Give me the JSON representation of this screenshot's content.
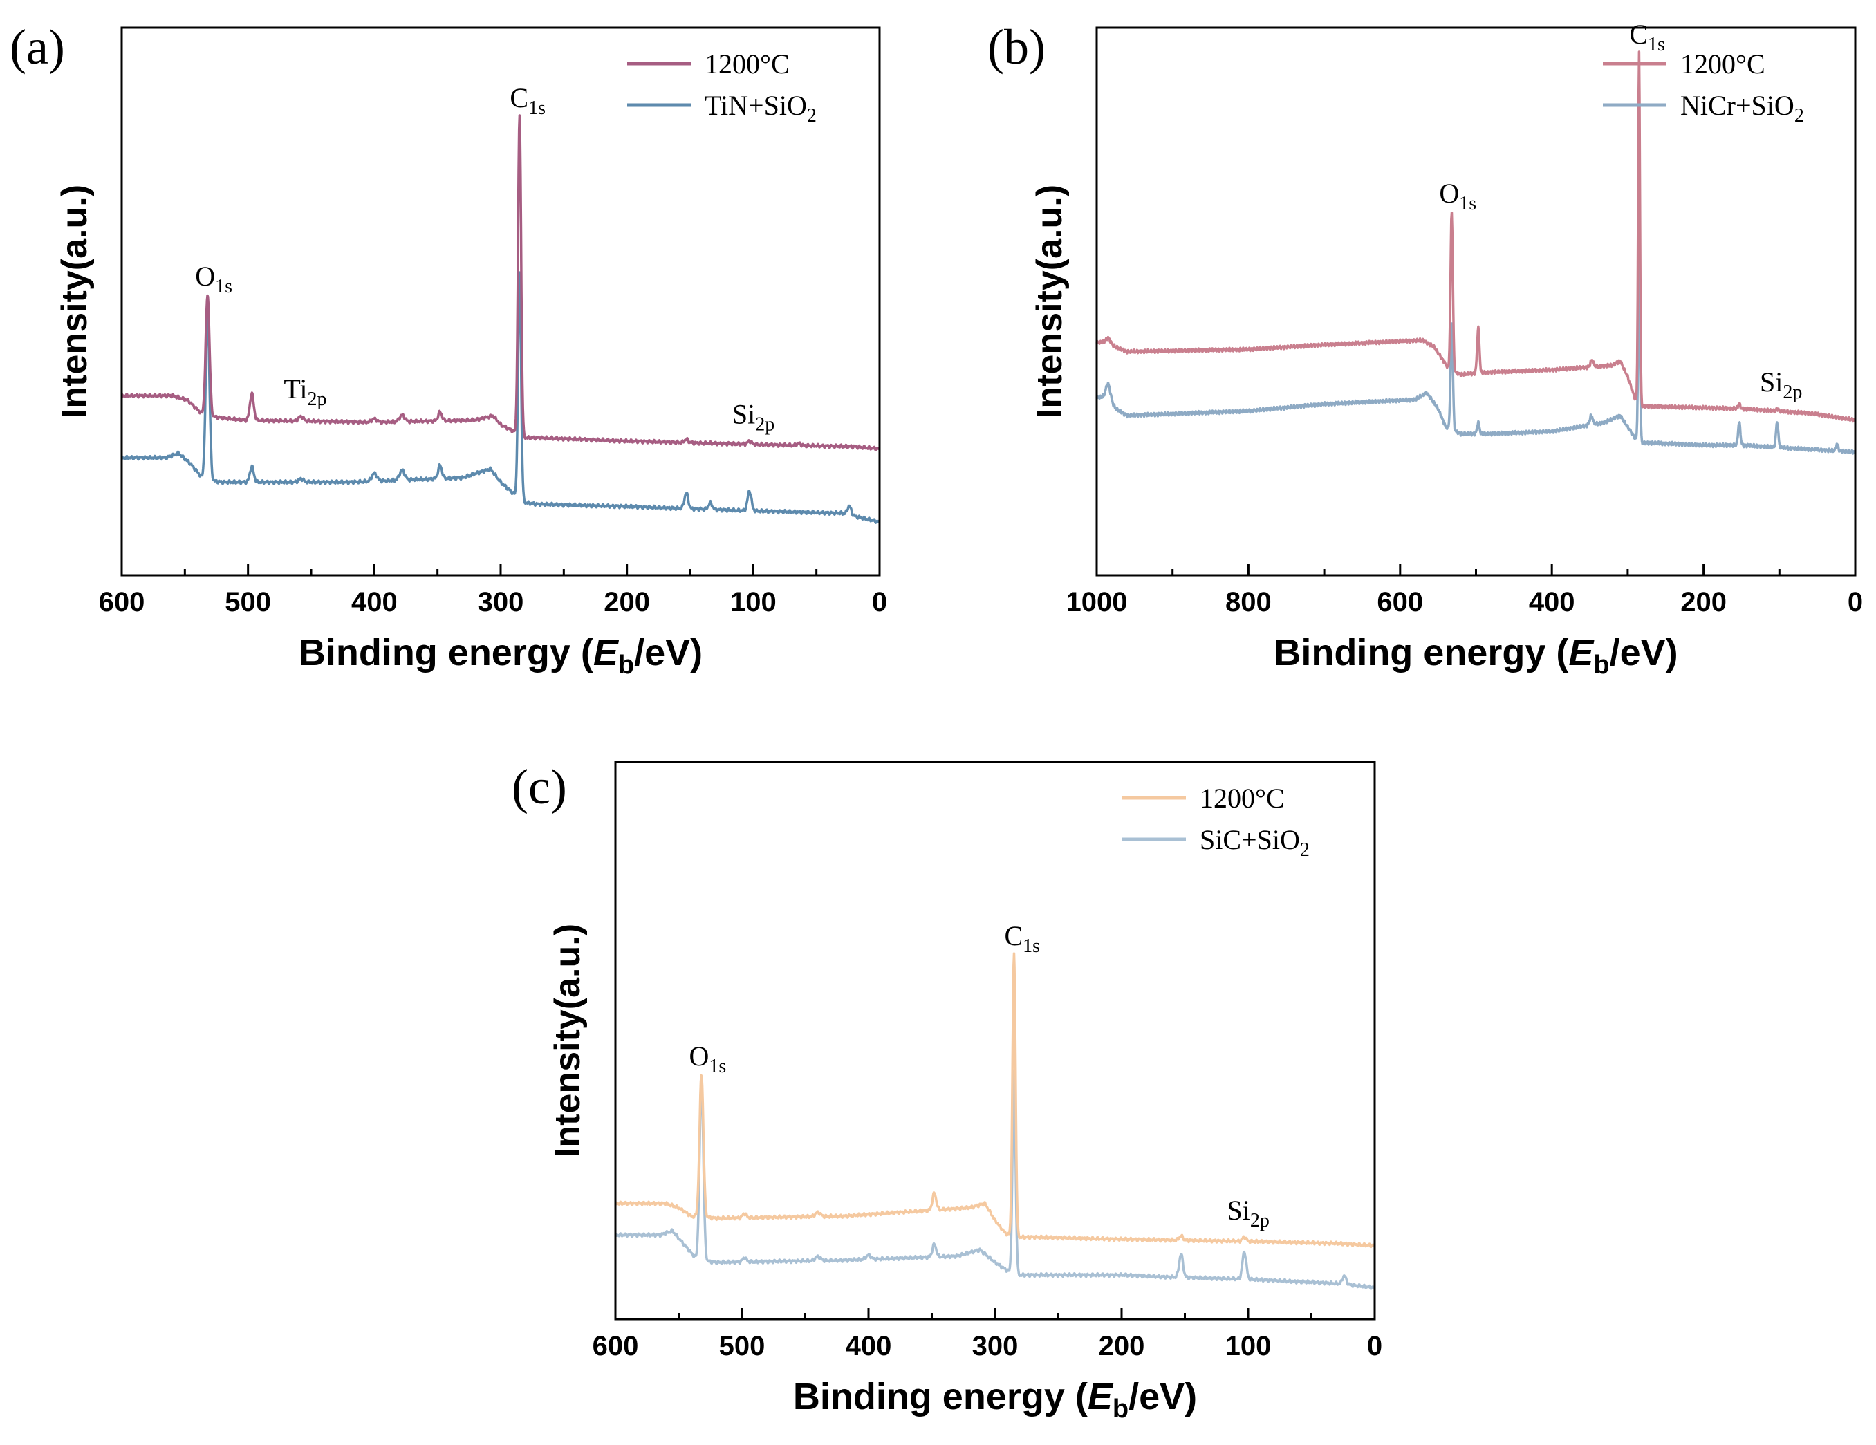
{
  "chart_data": [
    {
      "type": "line",
      "panel_label": "(a)",
      "xlabel_main": "Binding energy (",
      "xlabel_var": "E",
      "xlabel_sub": "b",
      "xlabel_unit": "/eV)",
      "ylabel": "Intensity(a.u.)",
      "xlim": [
        600,
        0
      ],
      "xticks": [
        600,
        500,
        400,
        300,
        200,
        100,
        0
      ],
      "y_ticks_shown": false,
      "legend_position": "top-right",
      "series": [
        {
          "name": "1200°C",
          "color": "#a65d82",
          "offset": 0.5,
          "background": [
            [
              600,
              0.19
            ],
            [
              560,
              0.19
            ],
            [
              548,
              0.17
            ],
            [
              535,
              0.1
            ],
            [
              505,
              0.08
            ],
            [
              400,
              0.07
            ],
            [
              320,
              0.08
            ],
            [
              306,
              0.1
            ],
            [
              300,
              0.06
            ],
            [
              290,
              0.03
            ],
            [
              284,
              0
            ],
            [
              270,
              0
            ],
            [
              200,
              -0.015
            ],
            [
              100,
              -0.03
            ],
            [
              20,
              -0.04
            ],
            [
              0,
              -0.05
            ]
          ],
          "peaks": [
            [
              532,
              0.55,
              1.5
            ],
            [
              497,
              0.12,
              1.5
            ],
            [
              458,
              0.02,
              2
            ],
            [
              400,
              0.015,
              2
            ],
            [
              378,
              0.03,
              2
            ],
            [
              348,
              0.04,
              1.5
            ],
            [
              285,
              1.45,
              1.2
            ],
            [
              153,
              0.015,
              1.5
            ],
            [
              103,
              0.015,
              1.5
            ],
            [
              64,
              0.01,
              1.5
            ]
          ]
        },
        {
          "name": "TiN+SiO2",
          "color": "#5d8aad",
          "offset": 0,
          "background": [
            [
              600,
              0.41
            ],
            [
              565,
              0.41
            ],
            [
              555,
              0.43
            ],
            [
              545,
              0.38
            ],
            [
              535,
              0.31
            ],
            [
              520,
              0.3
            ],
            [
              420,
              0.3
            ],
            [
              330,
              0.32
            ],
            [
              308,
              0.36
            ],
            [
              300,
              0.3
            ],
            [
              290,
              0.25
            ],
            [
              284,
              0.21
            ],
            [
              270,
              0.2
            ],
            [
              200,
              0.19
            ],
            [
              100,
              0.17
            ],
            [
              30,
              0.16
            ],
            [
              0,
              0.12
            ]
          ],
          "peaks": [
            [
              532,
              0.75,
              1.5
            ],
            [
              497,
              0.07,
              1.5
            ],
            [
              458,
              0.015,
              2
            ],
            [
              400,
              0.035,
              2
            ],
            [
              378,
              0.045,
              2
            ],
            [
              348,
              0.06,
              1.5
            ],
            [
              285,
              1.03,
              1.2
            ],
            [
              153,
              0.07,
              1.5
            ],
            [
              134,
              0.03,
              1.5
            ],
            [
              103,
              0.09,
              1.5
            ],
            [
              24,
              0.04,
              1.5
            ]
          ]
        }
      ],
      "legend": {
        "entry1_main": "1200°C",
        "entry2_main": "TiN+SiO",
        "entry2_sub": "2"
      },
      "annotations": [
        {
          "main": "C",
          "sub": "1s",
          "x": 285,
          "anchor": "right-of-peak"
        },
        {
          "main": "O",
          "sub": "1s",
          "x": 532,
          "anchor": "above-peak"
        },
        {
          "main": "Ti",
          "sub": "2p",
          "x": 458,
          "anchor": "above"
        },
        {
          "main": "Si",
          "sub": "2p",
          "x": 103,
          "anchor": "above"
        }
      ]
    },
    {
      "type": "line",
      "panel_label": "(b)",
      "xlabel_main": "Binding energy (",
      "xlabel_var": "E",
      "xlabel_sub": "b",
      "xlabel_unit": "/eV)",
      "ylabel": "Intensity(a.u.)",
      "xlim": [
        1000,
        0
      ],
      "xticks": [
        1000,
        800,
        600,
        400,
        200,
        0
      ],
      "y_ticks_shown": false,
      "legend_position": "top-right",
      "series": [
        {
          "name": "1200°C",
          "color": "#c97f8e",
          "offset": 0.5,
          "background": [
            [
              1000,
              -0.03
            ],
            [
              985,
              -0.03
            ],
            [
              975,
              -0.05
            ],
            [
              960,
              -0.07
            ],
            [
              800,
              -0.06
            ],
            [
              700,
              -0.04
            ],
            [
              570,
              -0.02
            ],
            [
              555,
              -0.05
            ],
            [
              545,
              -0.1
            ],
            [
              535,
              -0.15
            ],
            [
              520,
              -0.17
            ],
            [
              480,
              -0.16
            ],
            [
              400,
              -0.15
            ],
            [
              320,
              -0.13
            ],
            [
              310,
              -0.11
            ],
            [
              300,
              -0.18
            ],
            [
              290,
              -0.28
            ],
            [
              284,
              -0.31
            ],
            [
              270,
              -0.31
            ],
            [
              150,
              -0.32
            ],
            [
              60,
              -0.34
            ],
            [
              20,
              -0.36
            ],
            [
              0,
              -0.37
            ]
          ],
          "peaks": [
            [
              985,
              0.02,
              3
            ],
            [
              532,
              0.7,
              1.5
            ],
            [
              497,
              0.2,
              1.5
            ],
            [
              347,
              0.03,
              2
            ],
            [
              285,
              1.55,
              1.2
            ],
            [
              153,
              0.02,
              1.5
            ],
            [
              103,
              0.01,
              1.5
            ]
          ]
        },
        {
          "name": "NiCr+SiO2",
          "color": "#8eaac4",
          "offset": 0,
          "background": [
            [
              1000,
              0.23
            ],
            [
              985,
              0.23
            ],
            [
              975,
              0.18
            ],
            [
              960,
              0.15
            ],
            [
              800,
              0.17
            ],
            [
              700,
              0.2
            ],
            [
              580,
              0.22
            ],
            [
              565,
              0.25
            ],
            [
              550,
              0.18
            ],
            [
              540,
              0.1
            ],
            [
              532,
              0.09
            ],
            [
              520,
              0.07
            ],
            [
              480,
              0.07
            ],
            [
              400,
              0.08
            ],
            [
              330,
              0.12
            ],
            [
              310,
              0.15
            ],
            [
              300,
              0.1
            ],
            [
              290,
              0.05
            ],
            [
              284,
              0.03
            ],
            [
              270,
              0.03
            ],
            [
              200,
              0.02
            ],
            [
              150,
              0.02
            ],
            [
              50,
              0.0
            ],
            [
              0,
              -0.01
            ]
          ],
          "peaks": [
            [
              985,
              0.06,
              3
            ],
            [
              532,
              0.47,
              1.5
            ],
            [
              497,
              0.05,
              1.5
            ],
            [
              348,
              0.04,
              2
            ],
            [
              285,
              0.8,
              1.2
            ],
            [
              153,
              0.1,
              1.5
            ],
            [
              103,
              0.11,
              1.5
            ],
            [
              24,
              0.03,
              1.5
            ]
          ]
        }
      ],
      "legend": {
        "entry1_main": "1200°C",
        "entry2_main": "NiCr+SiO",
        "entry2_sub": "2"
      },
      "annotations": [
        {
          "main": "C",
          "sub": "1s",
          "x": 285,
          "anchor": "right-of-peak"
        },
        {
          "main": "O",
          "sub": "1s",
          "x": 532,
          "anchor": "above-peak"
        },
        {
          "main": "Si",
          "sub": "2p",
          "x": 103,
          "anchor": "above"
        }
      ]
    },
    {
      "type": "line",
      "panel_label": "(c)",
      "xlabel_main": "Binding energy (",
      "xlabel_var": "E",
      "xlabel_sub": "b",
      "xlabel_unit": "/eV)",
      "ylabel": "Intensity(a.u.)",
      "xlim": [
        600,
        0
      ],
      "xticks": [
        600,
        500,
        400,
        300,
        200,
        100,
        0
      ],
      "y_ticks_shown": false,
      "legend_position": "top-right",
      "series": [
        {
          "name": "1200°C",
          "color": "#f5c9a0",
          "offset": 0.55,
          "background": [
            [
              600,
              0.2
            ],
            [
              560,
              0.2
            ],
            [
              550,
              0.18
            ],
            [
              540,
              0.14
            ],
            [
              520,
              0.13
            ],
            [
              420,
              0.14
            ],
            [
              320,
              0.18
            ],
            [
              308,
              0.2
            ],
            [
              300,
              0.12
            ],
            [
              292,
              0.06
            ],
            [
              286,
              0.04
            ],
            [
              270,
              0.04
            ],
            [
              200,
              0.03
            ],
            [
              100,
              0.02
            ],
            [
              30,
              0.01
            ],
            [
              0,
              0.0
            ]
          ],
          "peaks": [
            [
              532,
              0.68,
              1.5
            ],
            [
              498,
              0.02,
              1.5
            ],
            [
              440,
              0.02,
              2
            ],
            [
              348,
              0.08,
              1.5
            ],
            [
              285,
              1.35,
              1.2
            ],
            [
              153,
              0.02,
              1.5
            ],
            [
              103,
              0.02,
              1.5
            ]
          ]
        },
        {
          "name": "SiC+SiO2",
          "color": "#a9c0d4",
          "offset": 0,
          "background": [
            [
              600,
              0.6
            ],
            [
              565,
              0.6
            ],
            [
              555,
              0.62
            ],
            [
              545,
              0.55
            ],
            [
              535,
              0.48
            ],
            [
              520,
              0.47
            ],
            [
              420,
              0.48
            ],
            [
              330,
              0.5
            ],
            [
              312,
              0.53
            ],
            [
              300,
              0.47
            ],
            [
              290,
              0.43
            ],
            [
              284,
              0.41
            ],
            [
              270,
              0.41
            ],
            [
              200,
              0.41
            ],
            [
              160,
              0.4
            ],
            [
              100,
              0.39
            ],
            [
              30,
              0.37
            ],
            [
              0,
              0.35
            ]
          ],
          "peaks": [
            [
              532,
              0.85,
              1.5
            ],
            [
              498,
              0.02,
              1.5
            ],
            [
              440,
              0.02,
              2
            ],
            [
              400,
              0.02,
              2
            ],
            [
              348,
              0.06,
              1.5
            ],
            [
              285,
              0.97,
              1.2
            ],
            [
              153,
              0.11,
              1.5
            ],
            [
              103,
              0.13,
              1.5
            ],
            [
              24,
              0.04,
              1.5
            ]
          ]
        }
      ],
      "legend": {
        "entry1_main": "1200°C",
        "entry2_main": "SiC+SiO",
        "entry2_sub": "2"
      },
      "annotations": [
        {
          "main": "C",
          "sub": "1s",
          "x": 285,
          "anchor": "right-of-peak"
        },
        {
          "main": "O",
          "sub": "1s",
          "x": 532,
          "anchor": "above-peak"
        },
        {
          "main": "Si",
          "sub": "2p",
          "x": 103,
          "anchor": "above"
        }
      ]
    }
  ]
}
